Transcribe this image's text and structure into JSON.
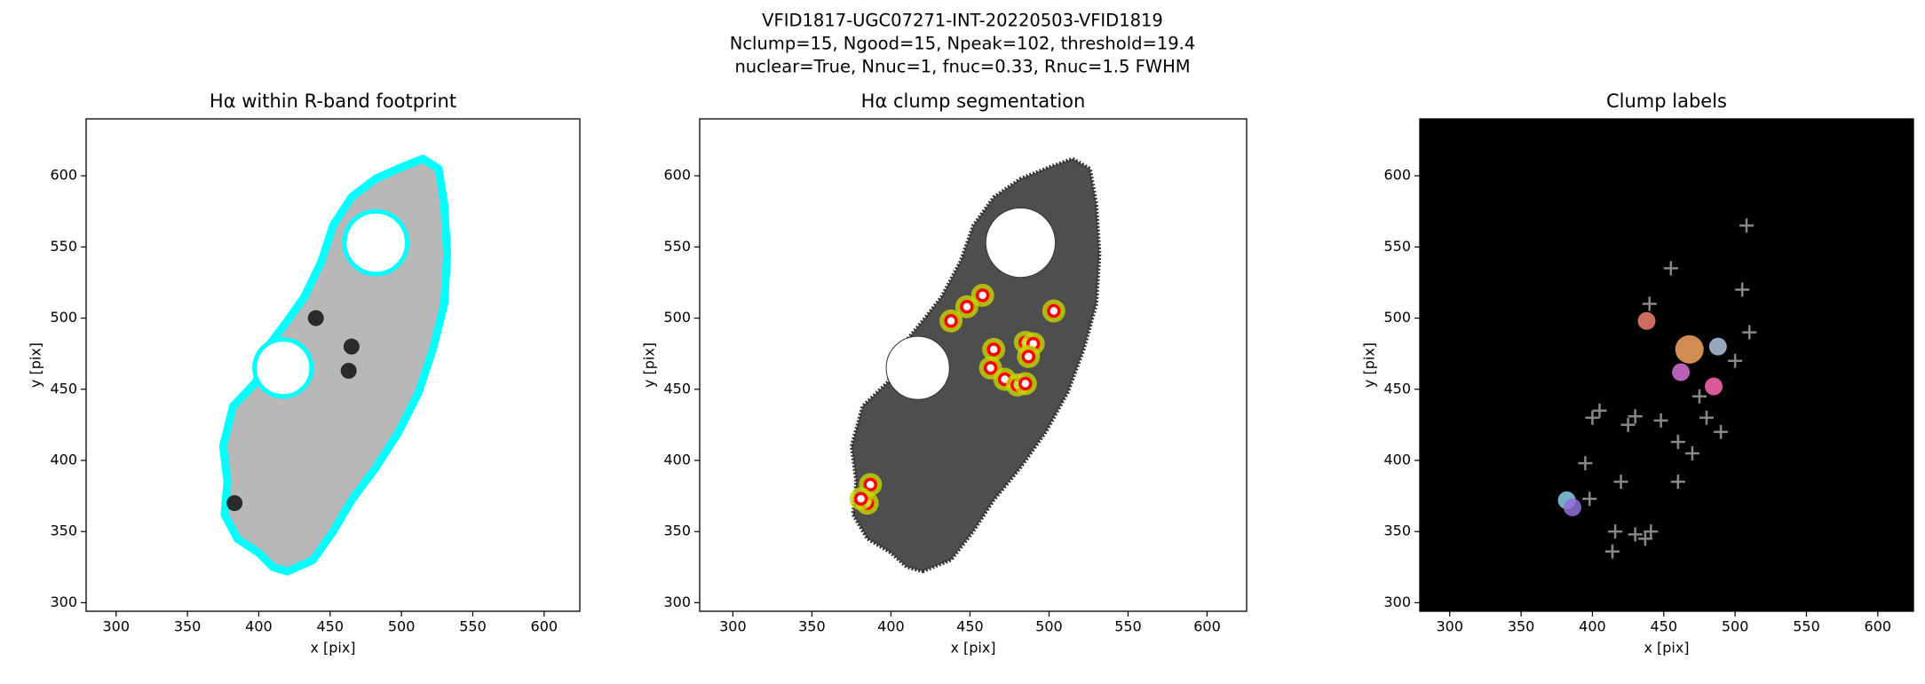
{
  "suptitle": [
    "VFID1817-UGC07271-INT-20220503-VFID1819",
    "Nclump=15, Ngood=15, Npeak=102, threshold=19.4",
    "nuclear=True, Nnuc=1, fnuc=0.33, Rnuc=1.5 FWHM"
  ],
  "chart_data": [
    {
      "type": "image",
      "title": "Hα within R-band footprint",
      "xlabel": "x [pix]",
      "ylabel": "y [pix]",
      "style": "footprint",
      "xlim": [
        279,
        625
      ],
      "ylim": [
        294,
        640
      ],
      "xticks": [
        300,
        350,
        400,
        450,
        500,
        550,
        600
      ],
      "yticks": [
        300,
        350,
        400,
        450,
        500,
        550,
        600
      ],
      "series": [
        {
          "name": "bright knots",
          "color": "#111111",
          "x": [
            440,
            465,
            463,
            383
          ],
          "y": [
            500,
            480,
            463,
            370
          ]
        }
      ]
    },
    {
      "type": "image",
      "title": "Hα clump segmentation",
      "xlabel": "x [pix]",
      "ylabel": "y [pix]",
      "style": "segmentation",
      "xlim": [
        279,
        625
      ],
      "ylim": [
        294,
        640
      ],
      "xticks": [
        300,
        350,
        400,
        450,
        500,
        550,
        600
      ],
      "yticks": [
        300,
        350,
        400,
        450,
        500,
        550,
        600
      ],
      "series": [
        {
          "name": "clumps",
          "color": "#ff0000",
          "x": [
            438,
            465,
            463,
            387,
            385,
            381,
            458,
            448,
            503,
            485,
            490,
            487,
            472,
            480,
            485
          ],
          "y": [
            498,
            478,
            465,
            383,
            370,
            373,
            516,
            508,
            505,
            483,
            482,
            473,
            457,
            453,
            454
          ]
        }
      ]
    },
    {
      "type": "image",
      "title": "Clump labels",
      "xlabel": "x [pix]",
      "ylabel": "y [pix]",
      "style": "labels",
      "xlim": [
        279,
        625
      ],
      "ylim": [
        294,
        640
      ],
      "xticks": [
        300,
        350,
        400,
        450,
        500,
        550,
        600
      ],
      "yticks": [
        300,
        350,
        400,
        450,
        500,
        550,
        600
      ],
      "series": [
        {
          "name": "clumps",
          "color": "#f08070",
          "x": [
            438,
            468,
            462,
            382,
            386,
            488,
            485
          ],
          "y": [
            498,
            478,
            462,
            372,
            367,
            480,
            452
          ]
        },
        {
          "name": "peaks",
          "color": "#888888",
          "x": [
            414,
            416,
            430,
            437,
            441,
            460,
            420,
            425,
            395,
            400,
            405,
            430,
            448,
            460,
            470,
            490,
            500,
            510,
            505,
            508,
            480,
            475,
            455,
            440,
            398
          ],
          "y": [
            336,
            350,
            348,
            345,
            350,
            385,
            385,
            425,
            398,
            430,
            435,
            431,
            428,
            413,
            405,
            420,
            470,
            490,
            520,
            565,
            430,
            445,
            535,
            510,
            373
          ]
        }
      ]
    }
  ]
}
